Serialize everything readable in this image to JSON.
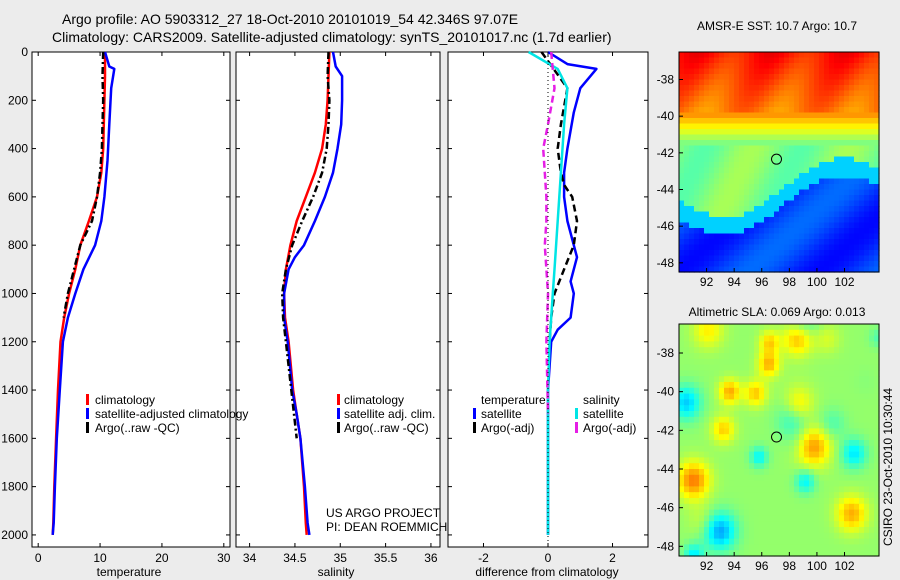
{
  "header": {
    "title_line1": "Argo profile: AO 5903312_27 18-Oct-2010 20101019_54 42.346S 97.07E",
    "title_line2": "Climatology: CARS2009. Satellite-adjusted climatology: synTS_20101017.nc (1.7d earlier)"
  },
  "colors": {
    "climatology": "#ff0000",
    "satellite": "#0000ff",
    "argo": "#000000",
    "sat_salinity": "#00e5e5",
    "argo_salinity": "#e51ee5",
    "grey_background": "#ececec"
  },
  "credits": {
    "project": "US ARGO PROJECT",
    "pi": "PI: DEAN ROEMMICH",
    "vertical_stamp": "CSIRO 23-Oct-2010 10:30:44"
  },
  "chart_data": [
    {
      "id": "temperature",
      "type": "line",
      "xlabel": "temperature",
      "xlim": [
        -1,
        31
      ],
      "ylim": [
        0,
        2050
      ],
      "xticks": [
        "0",
        "10",
        "20",
        "30"
      ],
      "xtick_values": [
        0,
        10,
        20,
        30
      ],
      "yticks": [
        "0",
        "200",
        "400",
        "600",
        "800",
        "1000",
        "1200",
        "1400",
        "1600",
        "1800",
        "2000"
      ],
      "ytick_values": [
        0,
        200,
        400,
        600,
        800,
        1000,
        1200,
        1400,
        1600,
        1800,
        2000
      ],
      "legend": [
        "climatology",
        "satellite-adjusted climatology",
        "Argo(..raw -QC)"
      ],
      "series": [
        {
          "name": "climatology",
          "color": "#ff0000",
          "dash": "none",
          "x": [
            10.8,
            10.8,
            10.7,
            10.6,
            10.5,
            10.2,
            9.5,
            8.2,
            6.8,
            6.0,
            5.0,
            4.2,
            3.6,
            3.2,
            2.9,
            2.6,
            2.45,
            2.35
          ],
          "y": [
            0,
            100,
            200,
            300,
            400,
            500,
            600,
            700,
            800,
            900,
            1000,
            1100,
            1200,
            1400,
            1600,
            1800,
            1950,
            2000
          ]
        },
        {
          "name": "satellite",
          "color": "#0000ff",
          "dash": "none",
          "x": [
            10.8,
            11.5,
            12.3,
            11.8,
            11.5,
            11.2,
            10.7,
            10.2,
            9.2,
            7.3,
            6.0,
            4.8,
            4.0,
            3.5,
            3.0,
            2.7,
            2.5,
            2.35
          ],
          "y": [
            0,
            60,
            70,
            150,
            300,
            450,
            600,
            700,
            800,
            900,
            1000,
            1100,
            1200,
            1400,
            1600,
            1800,
            1950,
            2000
          ]
        },
        {
          "name": "Argo",
          "color": "#000000",
          "dash": "7,3,2,3",
          "x": [
            10.5,
            10.4,
            10.5,
            10.4,
            10.3,
            10.0,
            9.5,
            8.7,
            6.8,
            5.8,
            4.8,
            4.1
          ],
          "y": [
            0,
            100,
            200,
            300,
            400,
            500,
            600,
            700,
            800,
            900,
            1000,
            1100
          ]
        }
      ]
    },
    {
      "id": "salinity",
      "type": "line",
      "xlabel": "salinity",
      "xlim": [
        33.85,
        36.1
      ],
      "ylim": [
        0,
        2050
      ],
      "xticks": [
        "34",
        "34.5",
        "35",
        "35.5",
        "36"
      ],
      "xtick_values": [
        34,
        34.5,
        35,
        35.5,
        36
      ],
      "legend": [
        "climatology",
        "satellite adj. clim.",
        "Argo(..raw -QC)"
      ],
      "series": [
        {
          "name": "climatology",
          "color": "#ff0000",
          "dash": "none",
          "x": [
            34.88,
            34.87,
            34.86,
            34.84,
            34.8,
            34.72,
            34.62,
            34.52,
            34.45,
            34.4,
            34.38,
            34.39,
            34.43,
            34.48,
            34.52,
            34.56,
            34.6,
            34.62,
            34.63
          ],
          "y": [
            0,
            100,
            200,
            300,
            400,
            500,
            600,
            700,
            800,
            900,
            1000,
            1100,
            1200,
            1400,
            1500,
            1600,
            1800,
            1950,
            2000
          ]
        },
        {
          "name": "satellite",
          "color": "#0000ff",
          "dash": "none",
          "x": [
            34.92,
            34.95,
            35.02,
            35.02,
            35.01,
            34.97,
            34.92,
            34.83,
            34.72,
            34.6,
            34.5,
            34.43,
            34.38,
            34.38,
            34.42,
            34.47,
            34.52,
            34.56,
            34.61,
            34.64,
            34.66
          ],
          "y": [
            0,
            60,
            100,
            200,
            300,
            400,
            500,
            600,
            700,
            800,
            850,
            900,
            1000,
            1100,
            1200,
            1400,
            1500,
            1600,
            1800,
            1950,
            2000
          ]
        },
        {
          "name": "Argo",
          "color": "#000000",
          "dash": "7,3,2,3",
          "x": [
            34.87,
            34.86,
            34.88,
            34.87,
            34.85,
            34.8,
            34.7,
            34.58,
            34.47,
            34.4,
            34.36,
            34.37,
            34.4,
            34.46,
            34.52
          ],
          "y": [
            0,
            100,
            200,
            300,
            400,
            500,
            600,
            700,
            800,
            900,
            1000,
            1100,
            1200,
            1400,
            1600
          ]
        }
      ]
    },
    {
      "id": "difference",
      "type": "line",
      "xlabel": "difference from climatology",
      "xlim": [
        -3.1,
        3.1
      ],
      "ylim": [
        0,
        2050
      ],
      "xticks": [
        "-2",
        "0",
        "2"
      ],
      "xtick_values": [
        -2,
        0,
        2
      ],
      "legend": {
        "temperature_title": "temperature",
        "salinity_title": "salinity",
        "items": [
          "satellite",
          "Argo(-adj)",
          "satellite",
          "Argo(-adj)"
        ]
      },
      "series": [
        {
          "name": "temperature satellite",
          "color": "#0000ff",
          "dash": "none",
          "x": [
            0.0,
            0.6,
            1.5,
            1.0,
            0.8,
            0.6,
            0.5,
            0.5,
            0.6,
            0.8,
            0.9,
            0.7,
            0.8,
            0.7,
            0.3,
            0.1,
            0.0,
            0.0,
            0.0,
            0.0
          ],
          "y": [
            0,
            50,
            70,
            150,
            250,
            400,
            500,
            600,
            700,
            800,
            850,
            950,
            1000,
            1100,
            1150,
            1200,
            1400,
            1600,
            1800,
            2000
          ]
        },
        {
          "name": "temperature Argo",
          "color": "#000000",
          "dash": "7,4",
          "x": [
            -0.2,
            0.6,
            0.4,
            0.3,
            0.4,
            0.5,
            0.75,
            0.9,
            0.8,
            0.5,
            0.2,
            0.1,
            0.05
          ],
          "y": [
            0,
            150,
            300,
            400,
            500,
            550,
            600,
            700,
            800,
            900,
            1000,
            1100,
            1200
          ]
        },
        {
          "name": "salinity satellite",
          "color": "#00e5e5",
          "dash": "none",
          "x": [
            -0.6,
            0.3,
            0.6,
            0.5,
            0.4,
            0.3,
            0.2,
            0.15,
            0.1,
            0.05,
            0.0,
            0.0,
            0.0,
            0.0
          ],
          "y": [
            0,
            70,
            150,
            300,
            500,
            700,
            900,
            1000,
            1100,
            1200,
            1400,
            1600,
            1800,
            2000
          ]
        },
        {
          "name": "salinity Argo",
          "color": "#e51ee5",
          "dash": "7,4",
          "x": [
            0.1,
            0.2,
            0.0,
            -0.15,
            -0.1,
            -0.05,
            -0.05,
            -0.1,
            -0.05,
            0.0,
            -0.05,
            0.0
          ],
          "y": [
            0,
            150,
            300,
            400,
            500,
            600,
            700,
            800,
            900,
            1000,
            1200,
            1500
          ]
        },
        {
          "name": "zero reference",
          "color": "#000000",
          "dash": "1,3",
          "x": [
            0,
            0
          ],
          "y": [
            0,
            2050
          ]
        }
      ]
    },
    {
      "id": "sst_map",
      "type": "heatmap",
      "title": "AMSR-E SST: 10.7 Argo: 10.7",
      "xlim": [
        90,
        104.5
      ],
      "ylim": [
        -48.5,
        -36.5
      ],
      "xticks": [
        "92",
        "94",
        "96",
        "98",
        "100",
        "102"
      ],
      "xtick_values": [
        92,
        94,
        96,
        98,
        100,
        102
      ],
      "yticks": [
        "-38",
        "-40",
        "-42",
        "-44",
        "-46",
        "-48"
      ],
      "ytick_values": [
        -38,
        -40,
        -42,
        -44,
        -46,
        -48
      ],
      "marker": {
        "lon": 97.07,
        "lat": -42.346
      }
    },
    {
      "id": "sla_map",
      "type": "heatmap",
      "title": "Altimetric SLA: 0.069 Argo: 0.013",
      "xlim": [
        90,
        104.5
      ],
      "ylim": [
        -48.5,
        -36.5
      ],
      "xticks": [
        "92",
        "94",
        "96",
        "98",
        "100",
        "102"
      ],
      "xtick_values": [
        92,
        94,
        96,
        98,
        100,
        102
      ],
      "yticks": [
        "-38",
        "-40",
        "-42",
        "-44",
        "-46",
        "-48"
      ],
      "ytick_values": [
        -38,
        -40,
        -42,
        -44,
        -46,
        -48
      ],
      "marker": {
        "lon": 97.07,
        "lat": -42.346
      }
    }
  ]
}
